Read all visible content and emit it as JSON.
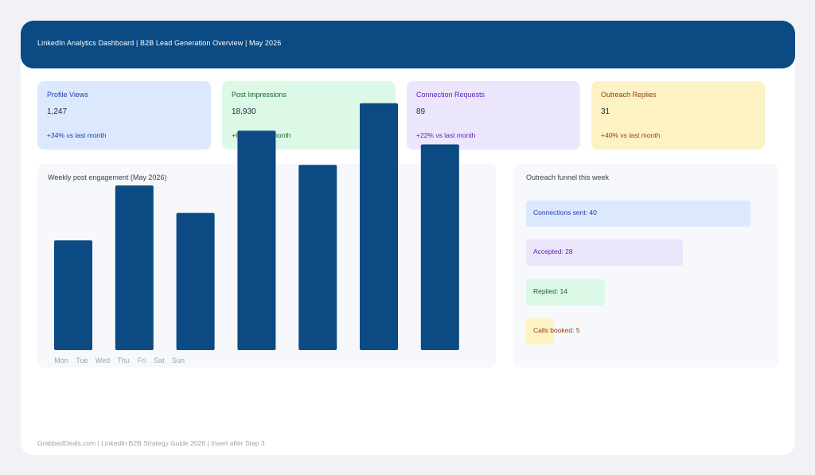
{
  "header": {
    "title": "LinkedIn Analytics Dashboard  |  B2B Lead Generation Overview  |  May 2026"
  },
  "kpis": [
    {
      "label": "Profile Views",
      "value": "1,247",
      "delta": "+34% vs last month",
      "bg": "#dce8fd",
      "label_color": "#1e40af",
      "delta_color": "#1e40af"
    },
    {
      "label": "Post Impressions",
      "value": "18,930",
      "delta": "+61% vs last month",
      "bg": "#dcf8e6",
      "label_color": "#166534",
      "delta_color": "#166534"
    },
    {
      "label": "Connection Requests",
      "value": "89",
      "delta": "+22% vs last month",
      "bg": "#ebe6fc",
      "label_color": "#5b21b6",
      "delta_color": "#5b21b6"
    },
    {
      "label": "Outreach Replies",
      "value": "31",
      "delta": "+40% vs last month",
      "bg": "#fdf2c4",
      "label_color": "#92400e",
      "delta_color": "#92400e"
    }
  ],
  "engagement_panel": {
    "title": "Weekly post engagement (May 2026)"
  },
  "funnel_panel": {
    "title": "Outreach funnel this week",
    "items": [
      {
        "label": "Connections sent: 40",
        "value": 40,
        "bg": "#dce8fd",
        "color": "#1e40af"
      },
      {
        "label": "Accepted: 28",
        "value": 28,
        "bg": "#ebe6fc",
        "color": "#5b21b6"
      },
      {
        "label": "Replied: 14",
        "value": 14,
        "bg": "#dcf8e6",
        "color": "#166534"
      },
      {
        "label": "Calls booked: 5",
        "value": 5,
        "bg": "#fdf2c4",
        "color": "#92400e"
      }
    ]
  },
  "chart_data": {
    "type": "bar",
    "title": "Weekly post engagement (May 2026)",
    "categories": [
      "Mon",
      "Tue",
      "Wed",
      "Thu",
      "Fri",
      "Sat",
      "Sun"
    ],
    "values": [
      48,
      72,
      60,
      96,
      81,
      108,
      90
    ],
    "ylim": [
      0,
      110
    ],
    "xlabel": "",
    "ylabel": "",
    "grid": false,
    "bar_color": "#0b4a82"
  },
  "footer": {
    "text": "GrabbedDeals.com  |  LinkedIn B2B Strategy Guide 2026  |  Insert after Step 3"
  }
}
